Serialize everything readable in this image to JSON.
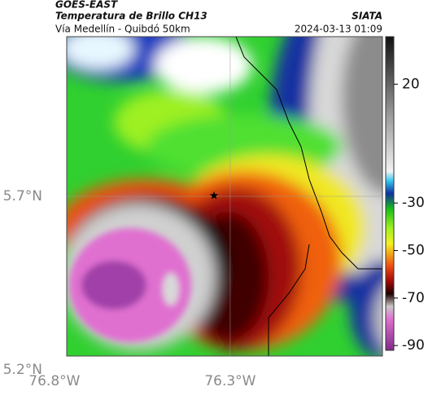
{
  "map": {
    "title": "GOES-EAST",
    "subtitle": "Temperatura de Brillo CH13",
    "source": "SIATA",
    "region": "Vía Medellín - Quibdó 50km",
    "timestamp": "2024-03-13 01:09",
    "xlim": [
      -76.765,
      -75.867
    ],
    "ylim": [
      5.24,
      6.16
    ],
    "xticks": [
      {
        "value": -76.8,
        "label": "76.8°W"
      },
      {
        "value": -76.3,
        "label": "76.3°W"
      }
    ],
    "yticks": [
      {
        "value": 5.2,
        "label": "5.2°N"
      },
      {
        "value": 5.7,
        "label": "5.7°N"
      }
    ],
    "grid": true,
    "marker": {
      "lon": -76.346,
      "lat": 5.702
    },
    "colorbar": {
      "clim": [
        40,
        -92
      ],
      "ticks": [
        20,
        -30,
        -50,
        -70,
        -90
      ]
    }
  }
}
